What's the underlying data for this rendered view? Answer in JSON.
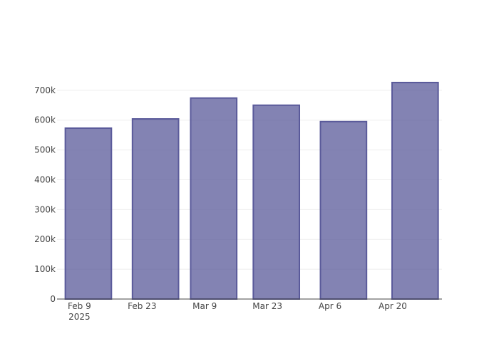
{
  "chart_data": {
    "type": "bar",
    "x": [
      "2025-02-11",
      "2025-02-26",
      "2025-03-11",
      "2025-03-25",
      "2025-04-09",
      "2025-04-25"
    ],
    "values": [
      573000,
      604000,
      674000,
      650000,
      595000,
      726000
    ],
    "color": "#5a5a9a",
    "xlim": [
      "2025-02-04",
      "2025-05-01"
    ],
    "xticks": [
      {
        "value": "2025-02-09",
        "label": "Feb 9\n2025"
      },
      {
        "value": "2025-02-23",
        "label": "Feb 23"
      },
      {
        "value": "2025-03-09",
        "label": "Mar 9"
      },
      {
        "value": "2025-03-23",
        "label": "Mar 23"
      },
      {
        "value": "2025-04-06",
        "label": "Apr 6"
      },
      {
        "value": "2025-04-20",
        "label": "Apr 20"
      }
    ],
    "ylim": [
      0,
      764000
    ],
    "yticks": [
      0,
      {
        "value": 100000,
        "label": "100k"
      },
      {
        "value": 200000,
        "label": "200k"
      },
      {
        "value": 300000,
        "label": "300k"
      },
      {
        "value": 400000,
        "label": "400k"
      },
      {
        "value": 500000,
        "label": "500k"
      },
      {
        "value": 600000,
        "label": "600k"
      },
      {
        "value": 700000,
        "label": "700k"
      }
    ],
    "grid": true
  }
}
